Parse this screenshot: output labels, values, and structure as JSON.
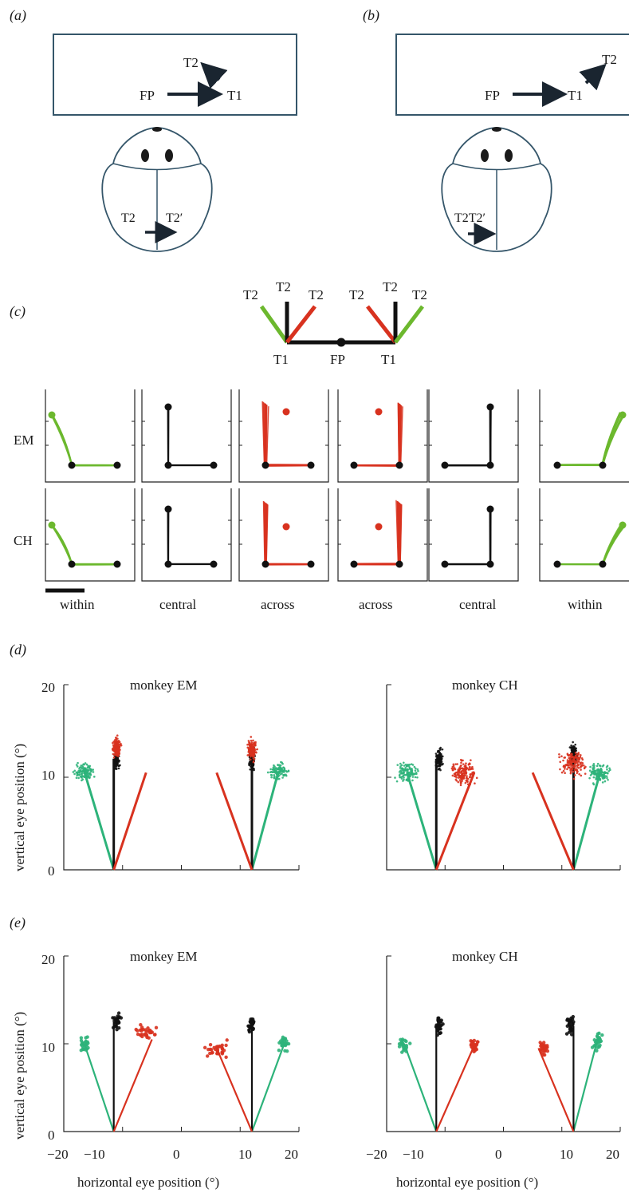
{
  "panel_labels": {
    "a": "(a)",
    "b": "(b)",
    "c": "(c)",
    "d": "(d)",
    "e": "(e)"
  },
  "panel_a": {
    "t2": "T2",
    "fp": "FP",
    "t1": "T1",
    "brain_t2": "T2",
    "brain_t2p": "T2′"
  },
  "panel_b": {
    "t2": "T2",
    "fp": "FP",
    "t1": "T1",
    "brain_t2t2p": "T2T2′"
  },
  "panel_c": {
    "schematic": {
      "t2": "T2",
      "t1": "T1",
      "fp": "FP"
    },
    "rows": [
      "EM",
      "CH"
    ],
    "columns": [
      "within",
      "central",
      "across",
      "across",
      "central",
      "within"
    ]
  },
  "panel_d": {
    "ylabel": "vertical eye position (°)",
    "titles": [
      "monkey EM",
      "monkey CH"
    ],
    "yticks": [
      "20",
      "10",
      "0"
    ]
  },
  "panel_e": {
    "ylabel": "vertical eye position (°)",
    "titles": [
      "monkey EM",
      "monkey CH"
    ],
    "yticks": [
      "20",
      "10",
      "0"
    ],
    "xticks": [
      "−20",
      "−10",
      "0",
      "10",
      "20"
    ],
    "xlabel": "horizontal eye position (°)"
  },
  "colors": {
    "black": "#111111",
    "green": "#2db37a",
    "lightgreen": "#6cb82e",
    "red": "#d8321f"
  },
  "chart_data": [
    {
      "type": "scatter",
      "title": "monkey EM (d)",
      "xlim": [
        -20,
        20
      ],
      "ylim": [
        0,
        20
      ],
      "series": [
        {
          "values": [
            [
              -16.5,
              10.6
            ],
            [
              16.5,
              10.6
            ]
          ]
        },
        {
          "values": [
            [
              -11,
              12
            ],
            [
              12,
              12
            ]
          ]
        },
        {
          "values": [
            [
              -11,
              13.2
            ],
            [
              12,
              13
            ]
          ]
        }
      ]
    },
    {
      "type": "scatter",
      "title": "monkey CH (d)",
      "xlim": [
        -20,
        20
      ],
      "ylim": [
        0,
        20
      ],
      "series": [
        {
          "values": [
            [
              -16.5,
              10.5
            ],
            [
              16.5,
              10.4
            ]
          ]
        },
        {
          "values": [
            [
              -11,
              12
            ],
            [
              12,
              12.5
            ]
          ]
        },
        {
          "values": [
            [
              -7,
              10.5
            ],
            [
              12,
              11.5
            ]
          ]
        }
      ]
    },
    {
      "type": "scatter",
      "title": "monkey EM (e)",
      "xlim": [
        -20,
        20
      ],
      "ylim": [
        0,
        20
      ],
      "series": [
        {
          "values": [
            [
              -16.5,
              10
            ],
            [
              17.5,
              10
            ]
          ]
        },
        {
          "values": [
            [
              -11,
              12.5
            ],
            [
              12,
              12.2
            ]
          ]
        },
        {
          "values": [
            [
              -6,
              11.5
            ],
            [
              6,
              9.5
            ]
          ]
        }
      ]
    },
    {
      "type": "scatter",
      "title": "monkey CH (e)",
      "xlim": [
        -20,
        20
      ],
      "ylim": [
        0,
        20
      ],
      "series": [
        {
          "values": [
            [
              -17,
              10
            ],
            [
              16,
              10.2
            ]
          ]
        },
        {
          "values": [
            [
              -11,
              12
            ],
            [
              11.5,
              12
            ]
          ]
        },
        {
          "values": [
            [
              -5,
              9.8
            ],
            [
              7,
              9.5
            ]
          ]
        }
      ]
    }
  ]
}
